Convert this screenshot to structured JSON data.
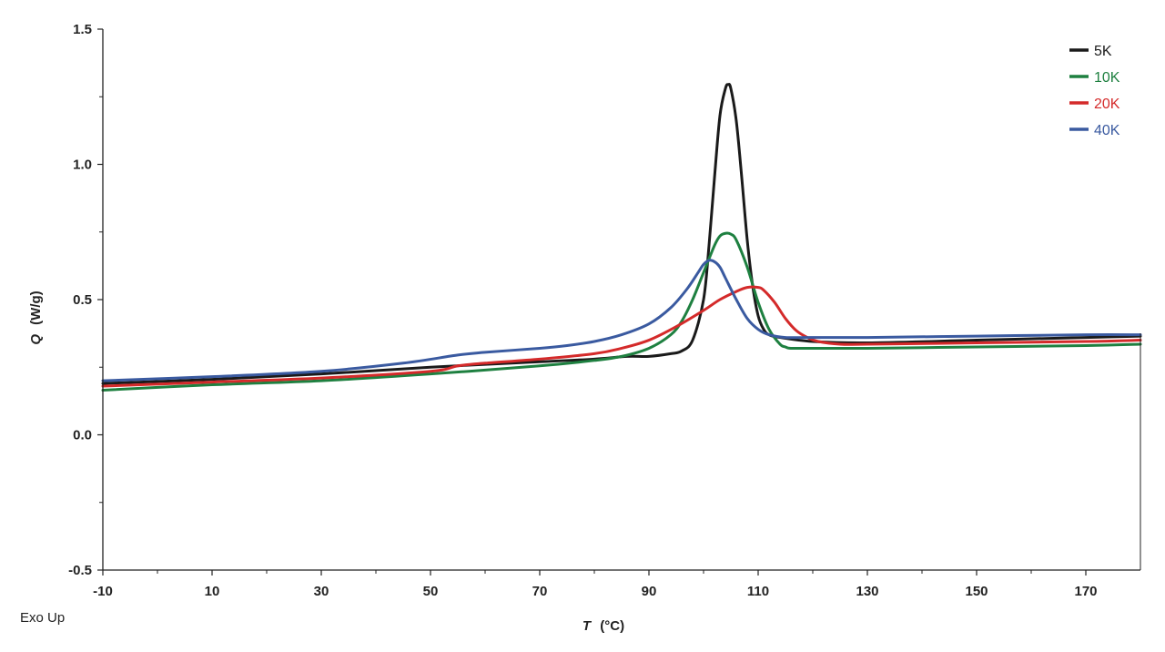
{
  "chart_data": {
    "type": "line",
    "xlabel": "T (°C)",
    "xlabel_var": "T",
    "xlabel_unit": "(°C)",
    "ylabel": "Q (W/g)",
    "ylabel_var": "Q",
    "ylabel_unit": "(W/g)",
    "xlim": [
      -10,
      180
    ],
    "ylim": [
      -0.5,
      1.5
    ],
    "xticks": [
      -10,
      10,
      30,
      50,
      70,
      90,
      110,
      130,
      150,
      170
    ],
    "yticks": [
      -0.5,
      0.0,
      0.5,
      1.0,
      1.5
    ],
    "ytick_labels": [
      "-0.5",
      "0.0",
      "0.5",
      "1.0",
      "1.5"
    ],
    "grid": false,
    "legend_position": "top-right",
    "annotation": "Exo Up",
    "series": [
      {
        "name": "5K",
        "color": "#1a1a1a",
        "x": [
          -10,
          10,
          30,
          50,
          70,
          80,
          86,
          90,
          94,
          96,
          98,
          100,
          101,
          102,
          103,
          104,
          104.5,
          105,
          106,
          107,
          108,
          109,
          110,
          111,
          112,
          114,
          120,
          130,
          150,
          170,
          180
        ],
        "y": [
          0.19,
          0.205,
          0.225,
          0.25,
          0.27,
          0.28,
          0.29,
          0.29,
          0.3,
          0.31,
          0.35,
          0.5,
          0.7,
          0.95,
          1.18,
          1.28,
          1.295,
          1.28,
          1.16,
          0.95,
          0.72,
          0.55,
          0.44,
          0.39,
          0.37,
          0.36,
          0.345,
          0.34,
          0.35,
          0.36,
          0.365
        ]
      },
      {
        "name": "10K",
        "color": "#1e8040",
        "x": [
          -10,
          10,
          30,
          50,
          70,
          80,
          85,
          90,
          94,
          96,
          98,
          100,
          102,
          103,
          104,
          105,
          106,
          108,
          110,
          112,
          114,
          115,
          116,
          120,
          130,
          150,
          170,
          180
        ],
        "y": [
          0.165,
          0.185,
          0.2,
          0.225,
          0.255,
          0.275,
          0.29,
          0.32,
          0.37,
          0.42,
          0.5,
          0.6,
          0.7,
          0.735,
          0.745,
          0.742,
          0.72,
          0.62,
          0.49,
          0.39,
          0.335,
          0.325,
          0.32,
          0.32,
          0.32,
          0.325,
          0.33,
          0.335
        ]
      },
      {
        "name": "20K",
        "color": "#d42a2a",
        "x": [
          -10,
          10,
          30,
          50,
          55,
          60,
          70,
          80,
          85,
          90,
          95,
          100,
          103,
          106,
          108,
          110,
          111,
          113,
          115,
          117,
          119,
          121,
          125,
          130,
          150,
          170,
          180
        ],
        "y": [
          0.18,
          0.195,
          0.21,
          0.235,
          0.255,
          0.265,
          0.28,
          0.3,
          0.32,
          0.35,
          0.4,
          0.46,
          0.5,
          0.53,
          0.545,
          0.545,
          0.535,
          0.49,
          0.43,
          0.385,
          0.36,
          0.345,
          0.335,
          0.335,
          0.34,
          0.345,
          0.35
        ]
      },
      {
        "name": "40K",
        "color": "#3a5aa0",
        "x": [
          -10,
          10,
          30,
          45,
          55,
          60,
          70,
          75,
          80,
          85,
          90,
          94,
          97,
          99,
          100,
          101,
          102,
          103,
          104,
          106,
          108,
          110,
          112,
          115,
          120,
          130,
          150,
          170,
          180
        ],
        "y": [
          0.2,
          0.215,
          0.235,
          0.265,
          0.295,
          0.305,
          0.32,
          0.33,
          0.345,
          0.37,
          0.41,
          0.47,
          0.54,
          0.6,
          0.63,
          0.645,
          0.64,
          0.62,
          0.58,
          0.5,
          0.43,
          0.39,
          0.37,
          0.36,
          0.36,
          0.36,
          0.365,
          0.37,
          0.37
        ]
      }
    ]
  }
}
